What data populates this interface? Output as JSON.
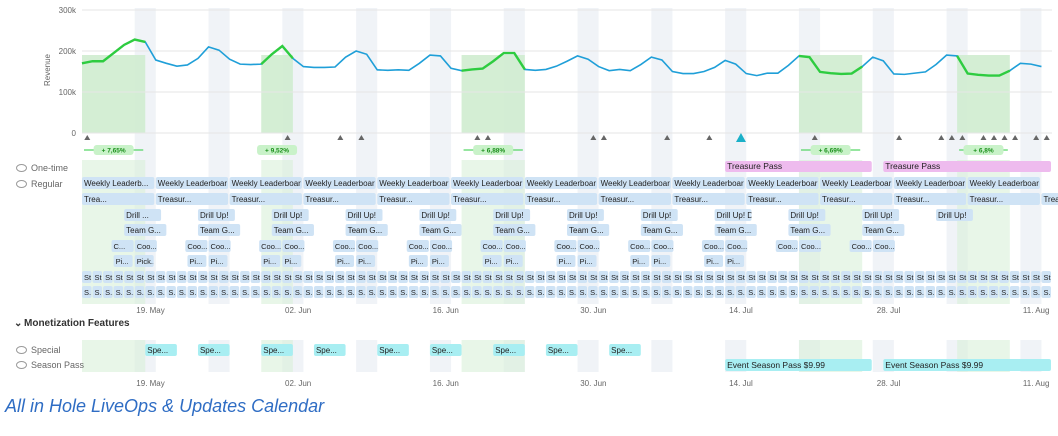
{
  "caption": "All in Hole LiveOps & Updates Calendar",
  "chart_data": {
    "type": "line",
    "ylabel": "Revenue",
    "yticks": [
      "300k",
      "200k",
      "100k",
      "0"
    ],
    "ylim": [
      0,
      300000
    ],
    "xlim": [
      "2024-05-13",
      "2024-08-13"
    ],
    "xticks": [
      "19. May",
      "02. Jun",
      "16. Jun",
      "30. Jun",
      "14. Jul",
      "28. Jul",
      "11. Aug"
    ],
    "xtick_dates": [
      "2024-05-19",
      "2024-06-02",
      "2024-06-16",
      "2024-06-30",
      "2024-07-14",
      "2024-07-28",
      "2024-08-11"
    ],
    "series": [
      {
        "color": "#1f9fd8",
        "x": [
          "2024-05-13",
          "2024-05-14",
          "2024-05-15",
          "2024-05-16",
          "2024-05-17",
          "2024-05-18",
          "2024-05-19",
          "2024-05-20",
          "2024-05-21",
          "2024-05-22",
          "2024-05-23",
          "2024-05-24",
          "2024-05-25",
          "2024-05-26",
          "2024-05-27",
          "2024-05-28",
          "2024-05-29",
          "2024-05-30",
          "2024-05-31",
          "2024-06-01",
          "2024-06-02",
          "2024-06-03",
          "2024-06-04",
          "2024-06-05",
          "2024-06-06",
          "2024-06-07",
          "2024-06-08",
          "2024-06-09",
          "2024-06-10",
          "2024-06-11",
          "2024-06-12",
          "2024-06-13",
          "2024-06-14",
          "2024-06-15",
          "2024-06-16",
          "2024-06-17",
          "2024-06-18",
          "2024-06-19",
          "2024-06-20",
          "2024-06-21",
          "2024-06-22",
          "2024-06-23",
          "2024-06-24",
          "2024-06-25",
          "2024-06-26",
          "2024-06-27",
          "2024-06-28",
          "2024-06-29",
          "2024-06-30",
          "2024-07-01",
          "2024-07-02",
          "2024-07-03",
          "2024-07-04",
          "2024-07-05",
          "2024-07-06",
          "2024-07-07",
          "2024-07-08",
          "2024-07-09",
          "2024-07-10",
          "2024-07-11",
          "2024-07-12",
          "2024-07-13",
          "2024-07-14",
          "2024-07-15",
          "2024-07-16",
          "2024-07-17",
          "2024-07-18",
          "2024-07-19",
          "2024-07-20",
          "2024-07-21",
          "2024-07-22",
          "2024-07-23",
          "2024-07-24",
          "2024-07-25",
          "2024-07-26",
          "2024-07-27",
          "2024-07-28",
          "2024-07-29",
          "2024-07-30",
          "2024-07-31",
          "2024-08-01",
          "2024-08-02",
          "2024-08-03",
          "2024-08-04",
          "2024-08-05",
          "2024-08-06",
          "2024-08-07",
          "2024-08-08",
          "2024-08-09",
          "2024-08-10",
          "2024-08-11",
          "2024-08-12"
        ],
        "values": [
          170000,
          175000,
          175000,
          195000,
          215000,
          228000,
          222000,
          178000,
          170000,
          163000,
          166000,
          182000,
          210000,
          202000,
          180000,
          168000,
          167000,
          168000,
          192000,
          212000,
          182000,
          162000,
          160000,
          160000,
          161000,
          185000,
          200000,
          192000,
          154000,
          153000,
          154000,
          153000,
          170000,
          190000,
          188000,
          158000,
          152000,
          155000,
          157000,
          175000,
          195000,
          195000,
          155000,
          153000,
          155000,
          163000,
          175000,
          188000,
          180000,
          162000,
          152000,
          155000,
          152000,
          167000,
          185000,
          178000,
          150000,
          145000,
          145000,
          150000,
          160000,
          177000,
          168000,
          145000,
          140000,
          146000,
          146000,
          165000,
          188000,
          185000,
          149000,
          146000,
          144000,
          145000,
          162000,
          185000,
          176000,
          144000,
          143000,
          146000,
          149000,
          167000,
          190000,
          188000,
          145000,
          142000,
          140000,
          140000,
          152000,
          170000,
          168000,
          162000
        ]
      }
    ],
    "highlight_segments": [
      {
        "start": "2024-05-13",
        "end": "2024-05-19",
        "label": "+ 7,65%"
      },
      {
        "start": "2024-05-30",
        "end": "2024-06-02",
        "label": "+ 9,52%"
      },
      {
        "start": "2024-06-18",
        "end": "2024-06-24",
        "label": "+ 6,88%"
      },
      {
        "start": "2024-07-20",
        "end": "2024-07-26",
        "label": "+ 6,69%"
      },
      {
        "start": "2024-08-04",
        "end": "2024-08-09",
        "label": "+ 6,8%"
      }
    ],
    "weekend_bands": [
      "2024-05-18",
      "2024-05-25",
      "2024-06-01",
      "2024-06-08",
      "2024-06-15",
      "2024-06-22",
      "2024-06-29",
      "2024-07-06",
      "2024-07-13",
      "2024-07-20",
      "2024-07-27",
      "2024-08-03",
      "2024-08-10"
    ],
    "release_markers": [
      "2024-05-13",
      "2024-06-01",
      "2024-06-06",
      "2024-06-08",
      "2024-06-19",
      "2024-06-20",
      "2024-06-30",
      "2024-07-01",
      "2024-07-07",
      "2024-07-11",
      "2024-07-21",
      "2024-07-29",
      "2024-08-02",
      "2024-08-03",
      "2024-08-04",
      "2024-08-06",
      "2024-08-07",
      "2024-08-08",
      "2024-08-09",
      "2024-08-11",
      "2024-08-12"
    ],
    "release_marker_highlight": "2024-07-14",
    "rows": {
      "one_time_label": "One-time",
      "regular_label": "Regular",
      "monetization_label": "Monetization Features",
      "special_label": "Special",
      "season_pass_label": "Season Pass",
      "treasure_pass": [
        {
          "start": "2024-07-13",
          "end": "2024-07-27",
          "label": "Treasure Pass"
        },
        {
          "start": "2024-07-28",
          "end": "2024-08-13",
          "label": "Treasure Pass"
        }
      ],
      "event_season_pass": [
        {
          "start": "2024-07-13",
          "end": "2024-07-27",
          "label": "Event Season Pass $9.99"
        },
        {
          "start": "2024-07-28",
          "end": "2024-08-13",
          "label": "Event Season Pass $9.99"
        }
      ],
      "weekly_leaderboard": [
        "Weekly Leaderb...",
        "Weekly Leaderboar",
        "Weekly Leaderboar",
        "Weekly Leaderboar",
        "Weekly Leaderboar",
        "Weekly Leaderboar",
        "Weekly Leaderboar",
        "Weekly Leaderboar",
        "Weekly Leaderboar",
        "Weekly Leaderboar",
        "Weekly Leaderboar",
        "Weekly Leaderboar",
        "Weekly Leaderboar"
      ],
      "treasure_row": [
        "Trea...",
        "Treasur...",
        "Treasur...",
        "Treasur...",
        "Treasur...",
        "Treasur...",
        "Treasur...",
        "Treasur...",
        "Treasur...",
        "Treasur...",
        "Treasur...",
        "Treasur...",
        "Treasur...",
        "Treas..."
      ],
      "drill_row": [
        "Drill ...",
        "Drill Up!",
        "Drill Up!",
        "Drill Up!",
        "Drill Up!",
        "Drill Up!",
        "Drill Up!",
        "Drill Up!",
        "Drill Up! D...",
        "Drill Up!",
        "Drill Up!",
        "Drill Up!"
      ],
      "team_row": [
        "Team G...",
        "Team G...",
        "Team G...",
        "Team G...",
        "Team G...",
        "Team G...",
        "Team G...",
        "Team G...",
        "Team G...",
        "Team G...",
        "Team G..."
      ],
      "coop_row": [
        "C...",
        "Coo...",
        "Coo...",
        "Coo...",
        "Coo...",
        "Coo...",
        "Coo...",
        "Coo...",
        "Coo...",
        "Coo...",
        "Coo...",
        "Coo...",
        "Coo...",
        "Coo...",
        "Coo...",
        "Coo...",
        "Coo...",
        "Coo...",
        "Coo...",
        "Coo...",
        "Coo...",
        "Coo..."
      ],
      "pick_row": [
        "Pi...",
        "Pick...",
        "Pi...",
        "Pi...",
        "Pi...",
        "Pi...",
        "Pi...",
        "Pi...",
        "Pi...",
        "Pi...",
        "Pi...",
        "Pi...",
        "Pi...",
        "Pi...",
        "Pi...",
        "Pi...",
        "Pi...",
        "Pi..."
      ],
      "st_label": "St",
      "s_label": "S...",
      "special_items": [
        "Spe...",
        "Spe...",
        "Spe...",
        "Spe...",
        "Spe...",
        "Spe...",
        "Spe...",
        "Spe...",
        "Spe..."
      ]
    }
  }
}
